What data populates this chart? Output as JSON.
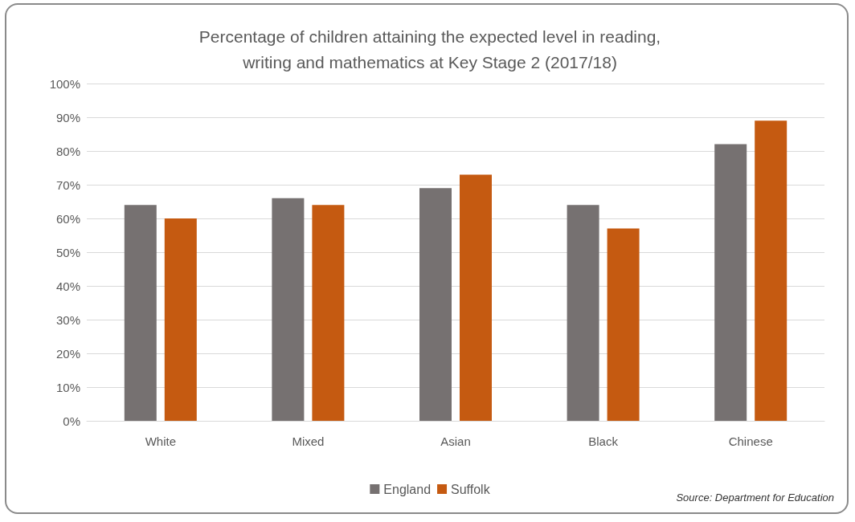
{
  "chart_data": {
    "type": "bar",
    "title": "Percentage of children attaining the expected level in reading,\nwriting and mathematics at Key Stage 2 (2017/18)",
    "categories": [
      "White",
      "Mixed",
      "Asian",
      "Black",
      "Chinese"
    ],
    "series": [
      {
        "name": "England",
        "color": "#767171",
        "values": [
          64,
          66,
          69,
          64,
          82
        ]
      },
      {
        "name": "Suffolk",
        "color": "#c55a11",
        "values": [
          60,
          64,
          73,
          57,
          89
        ]
      }
    ],
    "ylim": [
      0,
      100
    ],
    "yticks": [
      {
        "value": 0,
        "label": "0%"
      },
      {
        "value": 10,
        "label": "10%"
      },
      {
        "value": 20,
        "label": "20%"
      },
      {
        "value": 30,
        "label": "30%"
      },
      {
        "value": 40,
        "label": "40%"
      },
      {
        "value": 50,
        "label": "50%"
      },
      {
        "value": 60,
        "label": "60%"
      },
      {
        "value": 70,
        "label": "70%"
      },
      {
        "value": 80,
        "label": "80%"
      },
      {
        "value": 90,
        "label": "90%"
      },
      {
        "value": 100,
        "label": "100%"
      }
    ],
    "grid": "y",
    "legend": "bottom",
    "annotations": [
      "Source: Department for Education"
    ]
  }
}
